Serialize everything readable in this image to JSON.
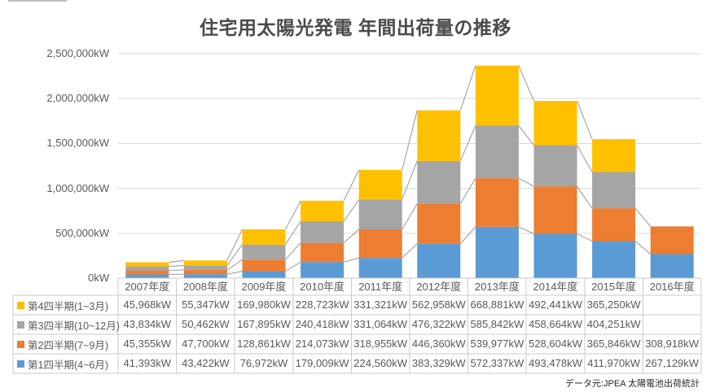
{
  "title": "住宅用太陽光発電 年間出荷量の推移",
  "source_note": "データ元:JPEA 太陽電池出荷統計",
  "colors": {
    "q1_blue": "#5B9BD5",
    "q2_orange": "#ED7D31",
    "q3_gray": "#A5A5A5",
    "q4_yellow": "#FFC000",
    "gridline": "#D9D9D9",
    "table_border": "#C9C9C9",
    "series_line": "#A6A6A6",
    "label_text": "#595959",
    "title_text": "#4a4a4a"
  },
  "chart_data": {
    "type": "bar",
    "stacked": true,
    "grid": true,
    "series_lines": true,
    "unit": "kW",
    "title": "住宅用太陽光発電 年間出荷量の推移",
    "categories": [
      "2007年度",
      "2008年度",
      "2009年度",
      "2010年度",
      "2011年度",
      "2012年度",
      "2013年度",
      "2014年度",
      "2015年度",
      "2016年度"
    ],
    "series": [
      {
        "name": "第1四半期(4~6月)",
        "color": "#5B9BD5",
        "values": [
          41393,
          43422,
          76972,
          179009,
          224560,
          383329,
          572337,
          493478,
          411970,
          267129
        ]
      },
      {
        "name": "第2四半期(7~9月)",
        "color": "#ED7D31",
        "values": [
          45355,
          47700,
          128861,
          214073,
          318955,
          446360,
          539977,
          528604,
          365846,
          308918
        ]
      },
      {
        "name": "第3四半期(10~12月)",
        "color": "#A5A5A5",
        "values": [
          43834,
          50462,
          167895,
          240418,
          331064,
          476322,
          585842,
          458664,
          404251,
          null
        ]
      },
      {
        "name": "第4四半期(1~3月)",
        "color": "#FFC000",
        "values": [
          45968,
          55347,
          169980,
          228723,
          331321,
          562958,
          668881,
          492441,
          365250,
          null
        ]
      }
    ],
    "table_display_order_top_to_bottom": [
      "第4四半期(1~3月)",
      "第3四半期(10~12月)",
      "第2四半期(7~9月)",
      "第1四半期(4~6月)"
    ],
    "ylim": [
      0,
      2500000
    ],
    "ytick_labels": [
      "0kW",
      "500,000kW",
      "1,000,000kW",
      "1,500,000kW",
      "2,000,000kW",
      "2,500,000kW"
    ],
    "legend_position": "data-table-left"
  }
}
